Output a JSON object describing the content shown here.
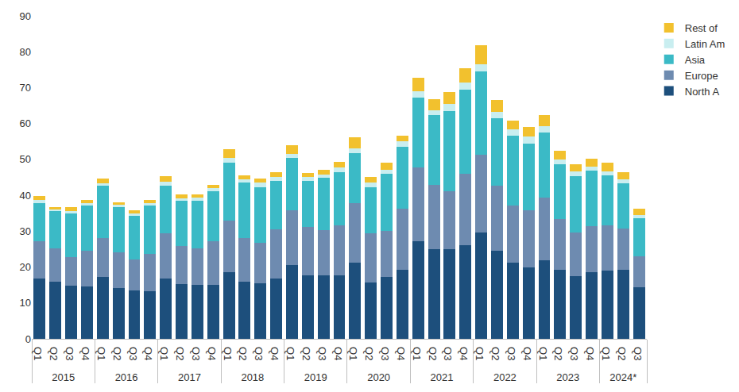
{
  "chart_data": {
    "type": "bar",
    "stacked": true,
    "grid": false,
    "legend": "right",
    "categories": [
      [
        "2015",
        "Q1"
      ],
      [
        "2015",
        "Q2"
      ],
      [
        "2015",
        "Q3"
      ],
      [
        "2015",
        "Q4"
      ],
      [
        "2016",
        "Q1"
      ],
      [
        "2016",
        "Q2"
      ],
      [
        "2016",
        "Q3"
      ],
      [
        "2016",
        "Q4"
      ],
      [
        "2017",
        "Q1"
      ],
      [
        "2017",
        "Q2"
      ],
      [
        "2017",
        "Q3"
      ],
      [
        "2017",
        "Q4"
      ],
      [
        "2018",
        "Q1"
      ],
      [
        "2018",
        "Q2"
      ],
      [
        "2018",
        "Q3"
      ],
      [
        "2018",
        "Q4"
      ],
      [
        "2019",
        "Q1"
      ],
      [
        "2019",
        "Q2"
      ],
      [
        "2019",
        "Q3"
      ],
      [
        "2019",
        "Q4"
      ],
      [
        "2020",
        "Q1"
      ],
      [
        "2020",
        "Q2"
      ],
      [
        "2020",
        "Q3"
      ],
      [
        "2020",
        "Q4"
      ],
      [
        "2021",
        "Q1"
      ],
      [
        "2021",
        "Q2"
      ],
      [
        "2021",
        "Q3"
      ],
      [
        "2021",
        "Q4"
      ],
      [
        "2022",
        "Q1"
      ],
      [
        "2022",
        "Q2"
      ],
      [
        "2022",
        "Q3"
      ],
      [
        "2022",
        "Q4"
      ],
      [
        "2023",
        "Q1"
      ],
      [
        "2023",
        "Q2"
      ],
      [
        "2023",
        "Q3"
      ],
      [
        "2023",
        "Q4"
      ],
      [
        "2024*",
        "Q1"
      ],
      [
        "2024*",
        "Q2"
      ],
      [
        "2024*",
        "Q3"
      ]
    ],
    "ylim": [
      0,
      90
    ],
    "yticks": [
      0,
      10,
      20,
      30,
      40,
      50,
      60,
      70,
      80,
      90
    ],
    "series": [
      {
        "name": "North A",
        "color": "#1d4f7c",
        "values": [
          16.7,
          16.0,
          14.8,
          14.6,
          17.2,
          14.1,
          13.4,
          13.2,
          16.9,
          15.3,
          15.1,
          15.1,
          18.6,
          16.0,
          15.5,
          16.7,
          20.5,
          17.6,
          17.6,
          17.6,
          21.2,
          15.8,
          17.2,
          19.3,
          27.3,
          24.9,
          24.9,
          26.1,
          29.6,
          24.5,
          21.2,
          20.0,
          21.9,
          19.3,
          17.4,
          18.6,
          19.1,
          19.3,
          14.4
        ]
      },
      {
        "name": "Europe",
        "color": "#6e8bb0",
        "values": [
          10.6,
          9.2,
          8.0,
          9.9,
          10.8,
          9.9,
          8.7,
          10.4,
          12.5,
          10.6,
          10.1,
          12.0,
          14.4,
          12.0,
          11.3,
          13.9,
          15.3,
          13.6,
          12.7,
          14.1,
          16.7,
          13.6,
          12.9,
          16.9,
          20.5,
          18.1,
          16.2,
          19.8,
          21.6,
          18.1,
          16.0,
          15.8,
          17.4,
          14.1,
          12.2,
          12.9,
          12.5,
          11.5,
          8.5
        ]
      },
      {
        "name": "Asia",
        "color": "#3bbac6",
        "values": [
          10.6,
          10.4,
          12.2,
          12.7,
          14.6,
          12.7,
          12.2,
          13.6,
          13.2,
          12.5,
          13.2,
          14.1,
          16.2,
          15.5,
          15.5,
          13.4,
          14.6,
          12.7,
          14.6,
          14.8,
          13.9,
          12.9,
          15.8,
          17.4,
          19.5,
          19.3,
          22.4,
          23.5,
          23.3,
          18.8,
          19.5,
          18.6,
          18.1,
          15.3,
          15.8,
          15.3,
          13.9,
          12.5,
          10.8
        ]
      },
      {
        "name": "Latin Am",
        "color": "#c9eef0",
        "values": [
          0.7,
          0.5,
          0.7,
          0.7,
          0.7,
          0.7,
          0.7,
          0.7,
          1.2,
          0.7,
          0.9,
          0.9,
          1.2,
          0.9,
          1.2,
          1.2,
          1.2,
          1.2,
          0.9,
          1.2,
          1.2,
          1.2,
          1.2,
          1.4,
          1.6,
          1.4,
          1.9,
          2.1,
          2.1,
          1.9,
          1.6,
          1.9,
          1.9,
          1.2,
          1.2,
          1.2,
          1.2,
          1.2,
          0.7
        ]
      },
      {
        "name": "Rest of",
        "color": "#f2c12e",
        "values": [
          1.2,
          0.7,
          0.9,
          0.9,
          1.4,
          0.7,
          0.9,
          0.9,
          1.6,
          1.2,
          0.9,
          0.9,
          2.4,
          1.2,
          1.2,
          1.2,
          2.4,
          1.2,
          1.2,
          1.6,
          3.1,
          1.6,
          1.9,
          1.6,
          3.8,
          3.1,
          3.3,
          3.8,
          5.2,
          3.3,
          2.6,
          2.8,
          3.1,
          2.4,
          2.1,
          2.1,
          2.4,
          1.9,
          1.9
        ]
      }
    ]
  }
}
